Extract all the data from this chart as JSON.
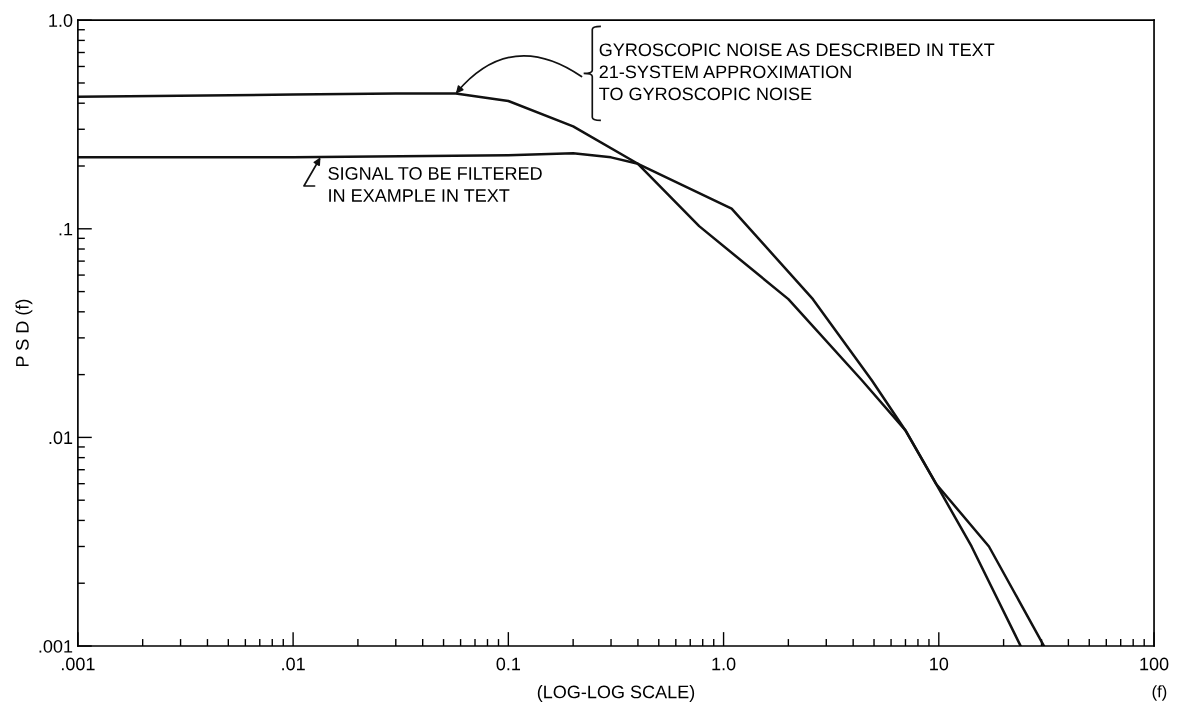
{
  "chart_data": {
    "type": "line",
    "xlabel": "(LOG-LOG SCALE)",
    "ylabel": "P S D (f)",
    "log": "xy",
    "grid": false,
    "legend": false,
    "marker": "none",
    "line_style": "solid",
    "xlim": [
      0.001,
      100
    ],
    "ylim": [
      0.001,
      1.0
    ],
    "xticks": [
      {
        "value": 0.001,
        "label": ".001"
      },
      {
        "value": 0.01,
        "label": ".01"
      },
      0.1,
      {
        "value": 1,
        "label": "1.0"
      },
      10,
      100
    ],
    "yticks": [
      {
        "value": 0.001,
        "label": ".001"
      },
      {
        "value": 0.01,
        "label": ".01"
      },
      {
        "value": 0.1,
        "label": ".1"
      },
      {
        "value": 1,
        "label": "1.0"
      }
    ],
    "series": [
      {
        "color": "#111111",
        "x": [
          0.001,
          0.01,
          0.03,
          0.057,
          0.1,
          0.2,
          0.4,
          0.77,
          2.0,
          4.39,
          7.0,
          9.7,
          17.1,
          30.8
        ],
        "values": [
          0.43,
          0.44,
          0.445,
          0.445,
          0.41,
          0.31,
          0.205,
          0.103,
          0.046,
          0.0188,
          0.0108,
          0.006,
          0.003,
          0.001
        ]
      },
      {
        "color": "#111111",
        "x": [
          0.001,
          0.01,
          0.1,
          0.2,
          0.3,
          0.4,
          1.09,
          2.6,
          4.88,
          7.0,
          9.7,
          14.2,
          24.0
        ],
        "values": [
          0.22,
          0.22,
          0.225,
          0.23,
          0.22,
          0.205,
          0.125,
          0.046,
          0.0188,
          0.0108,
          0.006,
          0.003,
          0.001
        ]
      }
    ],
    "annotations": [
      {
        "text": "GYROSCOPIC NOISE AS DESCRIBED IN TEXT\n21-SYSTEM APPROXIMATION\nTO GYROSCOPIC NOISE",
        "x": 0.057,
        "y": 0.445
      },
      {
        "text": "SIGNAL TO BE FILTERED\nIN EXAMPLE IN TEXT",
        "x": 0.0134,
        "y": 0.22
      },
      "(f)"
    ]
  }
}
